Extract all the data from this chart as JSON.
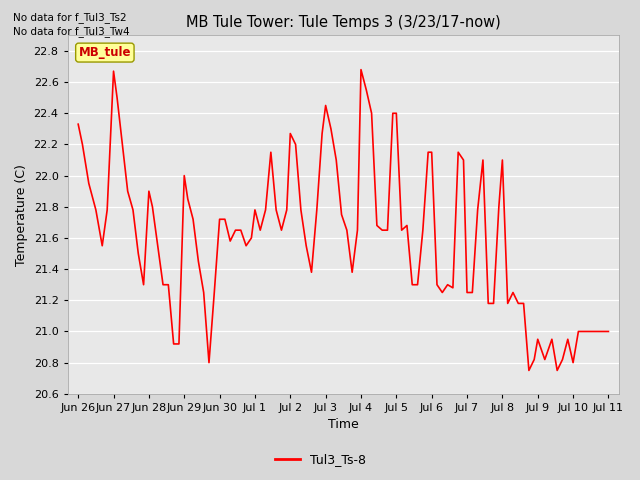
{
  "title": "MB Tule Tower: Tule Temps 3 (3/23/17-now)",
  "ylabel": "Temperature (C)",
  "xlabel": "Time",
  "legend_label": "Tul3_Ts-8",
  "legend_box_label": "MB_tule",
  "no_data_texts": [
    "No data for f_Tul3_Ts2",
    "No data for f_Tul3_Tw4"
  ],
  "line_color": "#ff0000",
  "fig_facecolor": "#d8d8d8",
  "ax_facecolor": "#e8e8e8",
  "ylim": [
    20.6,
    22.9
  ],
  "yticks": [
    20.6,
    20.8,
    21.0,
    21.2,
    21.4,
    21.6,
    21.8,
    22.0,
    22.2,
    22.4,
    22.6,
    22.8
  ],
  "xtick_labels": [
    "Jun 26",
    "Jun 27",
    "Jun 28",
    "Jun 29",
    "Jun 30",
    "Jul 1",
    "Jul 2",
    "Jul 3",
    "Jul 4",
    "Jul 5",
    "Jul 6",
    "Jul 7",
    "Jul 8",
    "Jul 9",
    "Jul 10",
    "Jul 11"
  ],
  "x": [
    0.0,
    0.12,
    0.3,
    0.5,
    0.68,
    0.82,
    1.0,
    1.1,
    1.25,
    1.4,
    1.55,
    1.7,
    1.85,
    2.0,
    2.1,
    2.25,
    2.4,
    2.55,
    2.7,
    2.85,
    3.0,
    3.1,
    3.25,
    3.4,
    3.55,
    3.7,
    3.85,
    4.0,
    4.15,
    4.3,
    4.45,
    4.6,
    4.75,
    4.9,
    5.0,
    5.15,
    5.3,
    5.45,
    5.6,
    5.75,
    5.9,
    6.0,
    6.15,
    6.3,
    6.45,
    6.6,
    6.75,
    6.9,
    7.0,
    7.15,
    7.3,
    7.45,
    7.6,
    7.75,
    7.9,
    8.0,
    8.15,
    8.3,
    8.45,
    8.6,
    8.75,
    8.9,
    9.0,
    9.15,
    9.3,
    9.45,
    9.6,
    9.75,
    9.9,
    10.0,
    10.15,
    10.3,
    10.45,
    10.6,
    10.75,
    10.9,
    11.0,
    11.15,
    11.3,
    11.45,
    11.6,
    11.75,
    11.9,
    12.0,
    12.15,
    12.3,
    12.45,
    12.6,
    12.75,
    12.9,
    13.0,
    13.2,
    13.4,
    13.55,
    13.7,
    13.85,
    14.0,
    14.15,
    14.3,
    14.5,
    14.7,
    14.85,
    15.0
  ],
  "y": [
    22.33,
    22.2,
    21.95,
    21.78,
    21.55,
    21.78,
    22.67,
    22.5,
    22.2,
    21.9,
    21.78,
    21.5,
    21.3,
    21.9,
    21.8,
    21.55,
    21.3,
    21.3,
    20.92,
    20.92,
    22.0,
    21.85,
    21.72,
    21.45,
    21.25,
    20.8,
    21.25,
    21.72,
    21.72,
    21.58,
    21.65,
    21.65,
    21.55,
    21.6,
    21.78,
    21.65,
    21.78,
    22.15,
    21.78,
    21.65,
    21.78,
    22.27,
    22.2,
    21.78,
    21.55,
    21.38,
    21.78,
    22.27,
    22.45,
    22.3,
    22.1,
    21.75,
    21.65,
    21.38,
    21.65,
    22.68,
    22.55,
    22.4,
    21.68,
    21.65,
    21.65,
    22.4,
    22.4,
    21.65,
    21.68,
    21.3,
    21.3,
    21.65,
    22.15,
    22.15,
    21.3,
    21.25,
    21.3,
    21.28,
    22.15,
    22.1,
    21.25,
    21.25,
    21.78,
    22.1,
    21.18,
    21.18,
    21.8,
    22.1,
    21.18,
    21.25,
    21.18,
    21.18,
    20.75,
    20.82,
    20.95,
    20.82,
    20.95,
    20.75,
    20.82,
    20.95,
    20.8,
    21.0,
    21.0,
    21.0,
    21.0,
    21.0,
    21.0
  ]
}
